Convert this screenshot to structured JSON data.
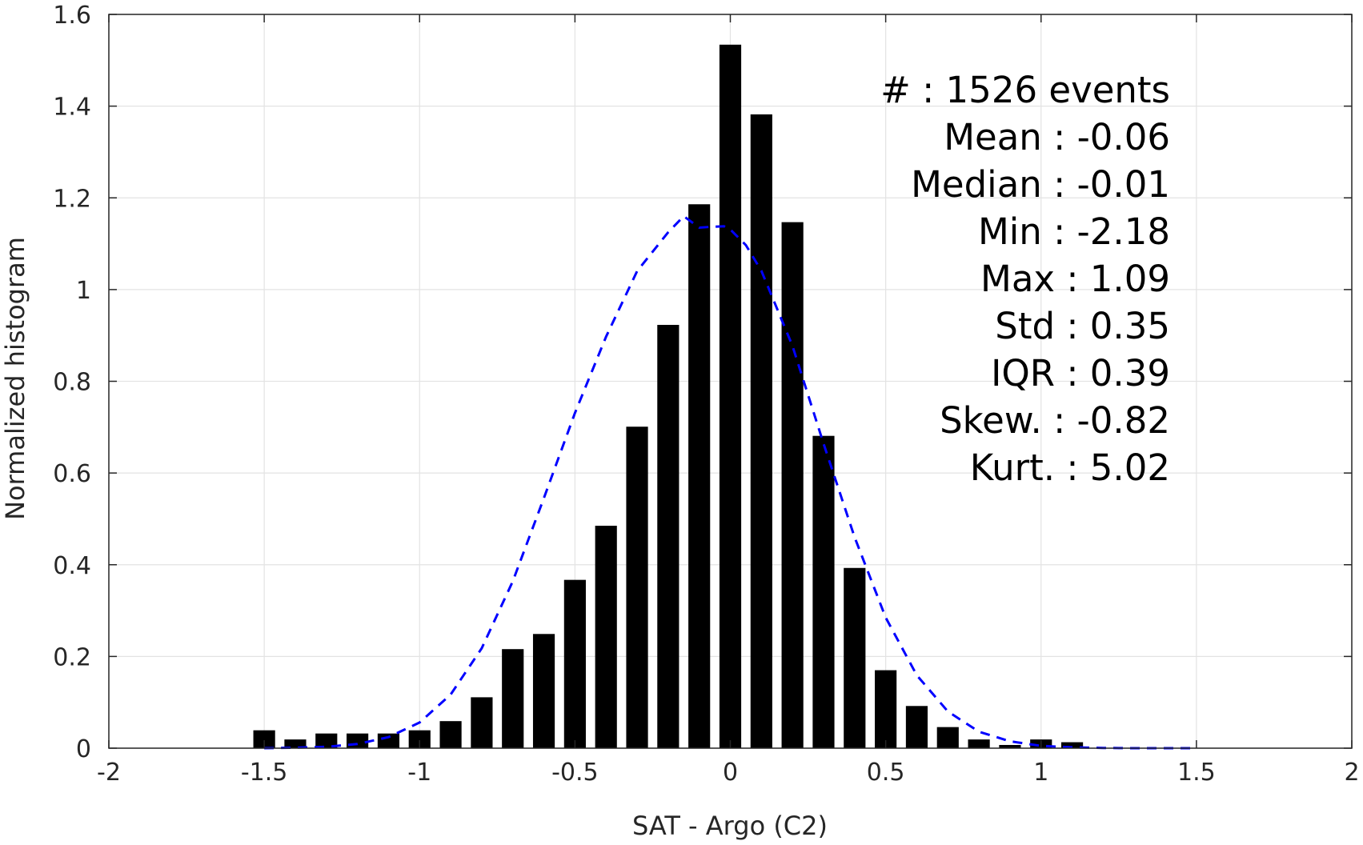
{
  "chart_data": {
    "type": "bar",
    "xlabel": "SAT - Argo (C2)",
    "ylabel": "Normalized histogram",
    "xlim": [
      -2,
      2
    ],
    "ylim": [
      0,
      1.6
    ],
    "grid": true,
    "x_ticks": [
      -2,
      -1.5,
      -1,
      -0.5,
      0,
      0.5,
      1,
      1.5,
      2
    ],
    "x_tick_labels": [
      "-2",
      "-1.5",
      "-1",
      "-0.5",
      "0",
      "0.5",
      "1",
      "1.5",
      "2"
    ],
    "y_ticks": [
      0,
      0.2,
      0.4,
      0.6,
      0.8,
      1,
      1.2,
      1.4,
      1.6
    ],
    "y_tick_labels": [
      "0",
      "0.2",
      "0.4",
      "0.6",
      "0.8",
      "1",
      "1.2",
      "1.4",
      "1.6"
    ],
    "bar_color": "#000000",
    "bar_width": 0.07,
    "series": [
      {
        "type": "bar",
        "x": [
          -1.5,
          -1.4,
          -1.3,
          -1.2,
          -1.1,
          -1.0,
          -0.9,
          -0.8,
          -0.7,
          -0.6,
          -0.5,
          -0.4,
          -0.3,
          -0.2,
          -0.1,
          0.0,
          0.1,
          0.2,
          0.3,
          0.4,
          0.5,
          0.6,
          0.7,
          0.8,
          0.9,
          1.0,
          1.1
        ],
        "values": [
          0.039,
          0.019,
          0.032,
          0.032,
          0.032,
          0.039,
          0.059,
          0.111,
          0.216,
          0.249,
          0.367,
          0.485,
          0.701,
          0.923,
          1.186,
          1.534,
          1.382,
          1.147,
          0.681,
          0.393,
          0.17,
          0.092,
          0.046,
          0.019,
          0.007,
          0.019,
          0.013
        ]
      },
      {
        "type": "line",
        "style": "dashed",
        "color": "#0000ff",
        "x": [
          -1.5,
          -1.4,
          -1.3,
          -1.2,
          -1.1,
          -1.0,
          -0.9,
          -0.8,
          -0.7,
          -0.6,
          -0.5,
          -0.4,
          -0.3,
          -0.2,
          -0.15,
          -0.1,
          -0.06,
          -0.02,
          0.0,
          0.05,
          0.1,
          0.2,
          0.3,
          0.4,
          0.5,
          0.6,
          0.7,
          0.8,
          0.9,
          1.0,
          1.1,
          1.2,
          1.3,
          1.4,
          1.5
        ],
        "y": [
          0.0,
          0.001,
          0.003,
          0.009,
          0.024,
          0.056,
          0.117,
          0.218,
          0.364,
          0.545,
          0.731,
          0.897,
          1.04,
          1.125,
          1.16,
          1.135,
          1.137,
          1.138,
          1.131,
          1.097,
          1.041,
          0.877,
          0.664,
          0.46,
          0.285,
          0.159,
          0.08,
          0.036,
          0.015,
          0.005,
          0.002,
          0.0005,
          0.0,
          0.0,
          0.0
        ]
      }
    ],
    "annotation": [
      "#   : 1526 events",
      "Mean : -0.06",
      "Median : -0.01",
      "Min : -2.18",
      "Max : 1.09",
      "Std : 0.35",
      "IQR : 0.39",
      "Skew. : -0.82",
      "Kurt. : 5.02"
    ]
  }
}
